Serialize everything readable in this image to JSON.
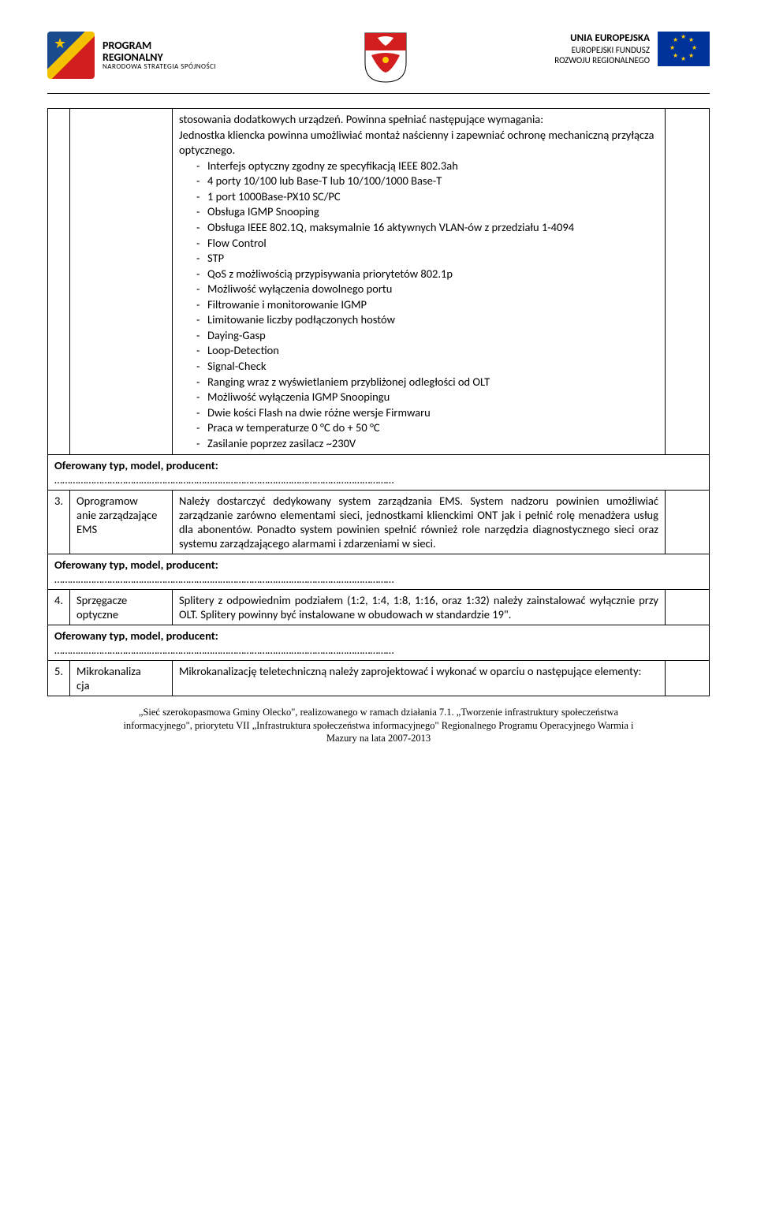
{
  "header": {
    "left": {
      "line1": "PROGRAM",
      "line2": "REGIONALNY",
      "line3": "NARODOWA STRATEGIA SPÓJNOŚCI"
    },
    "right": {
      "line1": "UNIA EUROPEJSKA",
      "line2": "EUROPEJSKI FUNDUSZ",
      "line3": "ROZWOJU REGIONALNEGO"
    }
  },
  "row_top": {
    "intro": "stosowania dodatkowych urządzeń. Powinna spełniać następujące wymagania:",
    "desc": "Jednostka kliencka powinna umożliwiać montaż naścienny i zapewniać ochronę mechaniczną przyłącza optycznego.",
    "bullets": [
      "Interfejs optyczny zgodny ze specyfikacją IEEE 802.3ah",
      "4 porty 10/100 lub Base-T lub 10/100/1000 Base-T",
      "1 port 1000Base-PX10 SC/PC",
      "Obsługa IGMP Snooping",
      "Obsługa IEEE 802.1Q, maksymalnie 16 aktywnych VLAN-ów z przedziału 1-4094",
      "Flow Control",
      "STP",
      "QoS z możliwością przypisywania priorytetów 802.1p",
      "Możliwość wyłączenia dowolnego portu",
      "Filtrowanie i monitorowanie IGMP",
      "Limitowanie liczby podłączonych hostów",
      "Daying-Gasp",
      "Loop-Detection",
      "Signal-Check",
      "Ranging wraz z wyświetlaniem przybliżonej odległości od OLT",
      "Możliwość wyłączenia IGMP Snoopingu",
      "Dwie kości Flash na dwie różne wersje Firmwaru",
      "Praca w temperaturze 0 °C do + 50 °C",
      "Zasilanie poprzez zasilacz ~230V"
    ]
  },
  "offered_label": "Oferowany typ, model, producent:",
  "rows": [
    {
      "num": "3.",
      "label": "Oprogramow\nanie zarządzające EMS",
      "text": "Należy dostarczyć dedykowany system zarządzania EMS. System nadzoru powinien umożliwiać zarządzanie zarówno elementami sieci, jednostkami klienckimi ONT jak i pełnić rolę menadżera usług dla abonentów. Ponadto system powinien spełnić również role narzędzia diagnostycznego sieci oraz systemu zarządzającego alarmami i zdarzeniami w sieci."
    },
    {
      "num": "4.",
      "label": "Sprzęgacze optyczne",
      "text": "Splitery z odpowiednim podziałem (1:2, 1:4, 1:8, 1:16, oraz 1:32) należy zainstalować wyłącznie przy OLT. Splitery powinny być instalowane w obudowach w standardzie 19\"."
    },
    {
      "num": "5.",
      "label": "Mikrokanaliza\ncja",
      "text": "Mikrokanalizację teletechniczną należy zaprojektować i wykonać w oparciu o następujące elementy:"
    }
  ],
  "footer": {
    "l1": "„Sieć szerokopasmowa Gminy Olecko\", realizowanego w ramach działania 7.1. „Tworzenie infrastruktury społeczeństwa",
    "l2": "informacyjnego\", priorytetu VII „Infrastruktura społeczeństwa informacyjnego\" Regionalnego Programu Operacyjnego Warmia i",
    "l3": "Mazury na lata 2007-2013"
  }
}
